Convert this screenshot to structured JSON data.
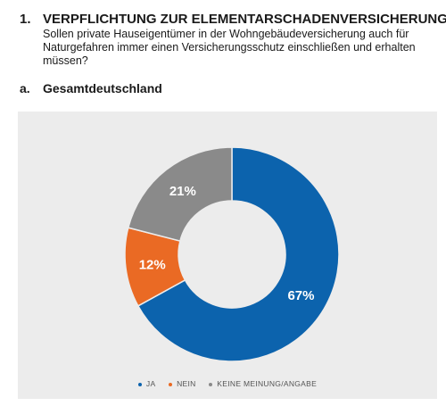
{
  "question": {
    "number": "1.",
    "title": "VERPFLICHTUNG ZUR ELEMENTARSCHADENVERSICHERUNG?",
    "description": "Sollen private Hauseigentümer in der Wohngebäudeversicherung auch für Naturgefahren immer einen Versicherungsschutz einschließen und erhalten müssen?"
  },
  "section": {
    "letter": "a.",
    "title": "Gesamtdeutschland"
  },
  "chart_data": {
    "type": "pie",
    "donut": true,
    "categories": [
      "JA",
      "NEIN",
      "KEINE MEINUNG/ANGABE"
    ],
    "values": [
      67,
      12,
      21
    ],
    "labels": [
      "67%",
      "12%",
      "21%"
    ],
    "colors": [
      "#0c63ad",
      "#ea6a24",
      "#8a8a8a"
    ],
    "legend_position": "bottom"
  }
}
